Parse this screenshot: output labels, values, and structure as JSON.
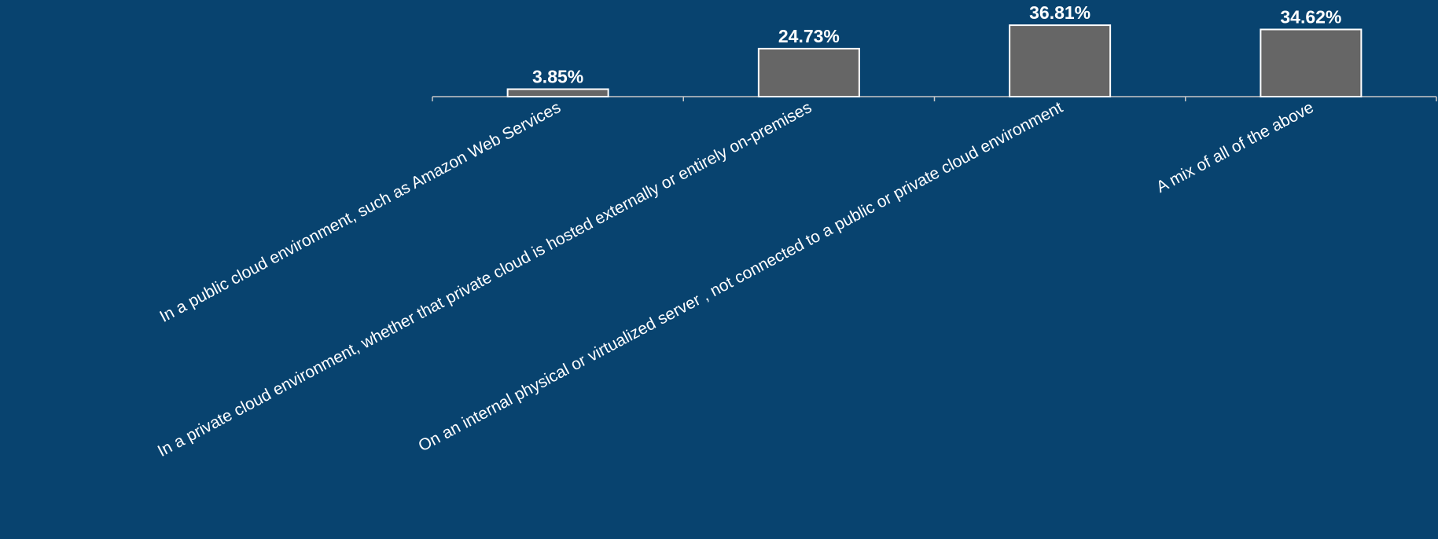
{
  "chart_data": {
    "type": "bar",
    "categories": [
      "In a public cloud environment, such as Amazon Web Services",
      "In a private cloud environment, whether that private cloud is hosted externally or entirely on-premises",
      "On an internal physical or virtualized server , not connected to a public or private cloud environment",
      "A mix of all of the above"
    ],
    "values": [
      3.85,
      24.73,
      36.81,
      34.62
    ],
    "value_labels": [
      "3.85%",
      "24.73%",
      "36.81%",
      "34.62%"
    ],
    "color": "#666666"
  }
}
